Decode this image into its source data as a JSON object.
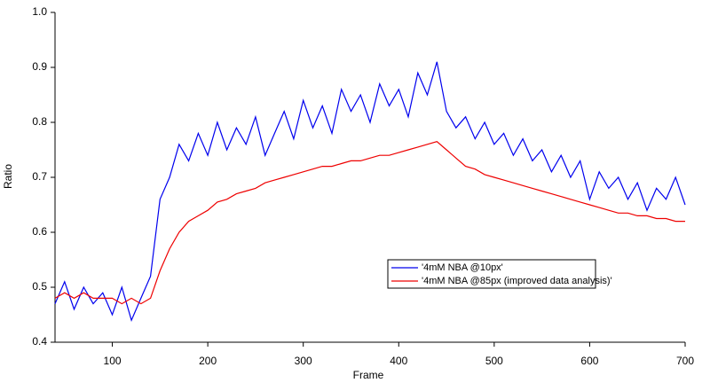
{
  "chart_data": {
    "type": "line",
    "x_label": "Frame",
    "y_label": "Ratio",
    "xlim": [
      40,
      700
    ],
    "ylim": [
      0.4,
      1.0
    ],
    "xticks": [
      100,
      200,
      300,
      400,
      500,
      600,
      700
    ],
    "yticks": [
      0.4,
      0.5,
      0.6,
      0.7,
      0.8,
      0.9,
      {
        "value": 1,
        "label": "1.0"
      }
    ],
    "x": [
      40,
      50,
      60,
      70,
      80,
      90,
      100,
      110,
      120,
      130,
      140,
      150,
      160,
      170,
      180,
      190,
      200,
      210,
      220,
      230,
      240,
      250,
      260,
      270,
      280,
      290,
      300,
      310,
      320,
      330,
      340,
      350,
      360,
      370,
      380,
      390,
      400,
      410,
      420,
      430,
      440,
      450,
      460,
      470,
      480,
      490,
      500,
      510,
      520,
      530,
      540,
      550,
      560,
      570,
      580,
      590,
      600,
      610,
      620,
      630,
      640,
      650,
      660,
      670,
      680,
      690,
      700
    ],
    "series": [
      {
        "name": "'4mM NBA @10px'",
        "color": "#0000ee",
        "values": [
          0.47,
          0.51,
          0.46,
          0.5,
          0.47,
          0.49,
          0.45,
          0.5,
          0.44,
          0.48,
          0.52,
          0.66,
          0.7,
          0.76,
          0.73,
          0.78,
          0.74,
          0.8,
          0.75,
          0.79,
          0.76,
          0.81,
          0.74,
          0.78,
          0.82,
          0.77,
          0.84,
          0.79,
          0.83,
          0.78,
          0.86,
          0.82,
          0.85,
          0.8,
          0.87,
          0.83,
          0.86,
          0.81,
          0.89,
          0.85,
          0.91,
          0.82,
          0.79,
          0.81,
          0.77,
          0.8,
          0.76,
          0.78,
          0.74,
          0.77,
          0.73,
          0.75,
          0.71,
          0.74,
          0.7,
          0.73,
          0.66,
          0.71,
          0.68,
          0.7,
          0.66,
          0.69,
          0.64,
          0.68,
          0.66,
          0.7,
          0.65
        ]
      },
      {
        "name": "'4mM NBA @85px (improved data analysis)'",
        "color": "#ee0000",
        "values": [
          0.48,
          0.49,
          0.48,
          0.49,
          0.48,
          0.48,
          0.48,
          0.47,
          0.48,
          0.47,
          0.48,
          0.53,
          0.57,
          0.6,
          0.62,
          0.63,
          0.64,
          0.655,
          0.66,
          0.67,
          0.675,
          0.68,
          0.69,
          0.695,
          0.7,
          0.705,
          0.71,
          0.715,
          0.72,
          0.72,
          0.725,
          0.73,
          0.73,
          0.735,
          0.74,
          0.74,
          0.745,
          0.75,
          0.755,
          0.76,
          0.765,
          0.75,
          0.735,
          0.72,
          0.715,
          0.705,
          0.7,
          0.695,
          0.69,
          0.685,
          0.68,
          0.675,
          0.67,
          0.665,
          0.66,
          0.655,
          0.65,
          0.645,
          0.64,
          0.635,
          0.635,
          0.63,
          0.63,
          0.625,
          0.625,
          0.62,
          0.62
        ]
      }
    ]
  }
}
